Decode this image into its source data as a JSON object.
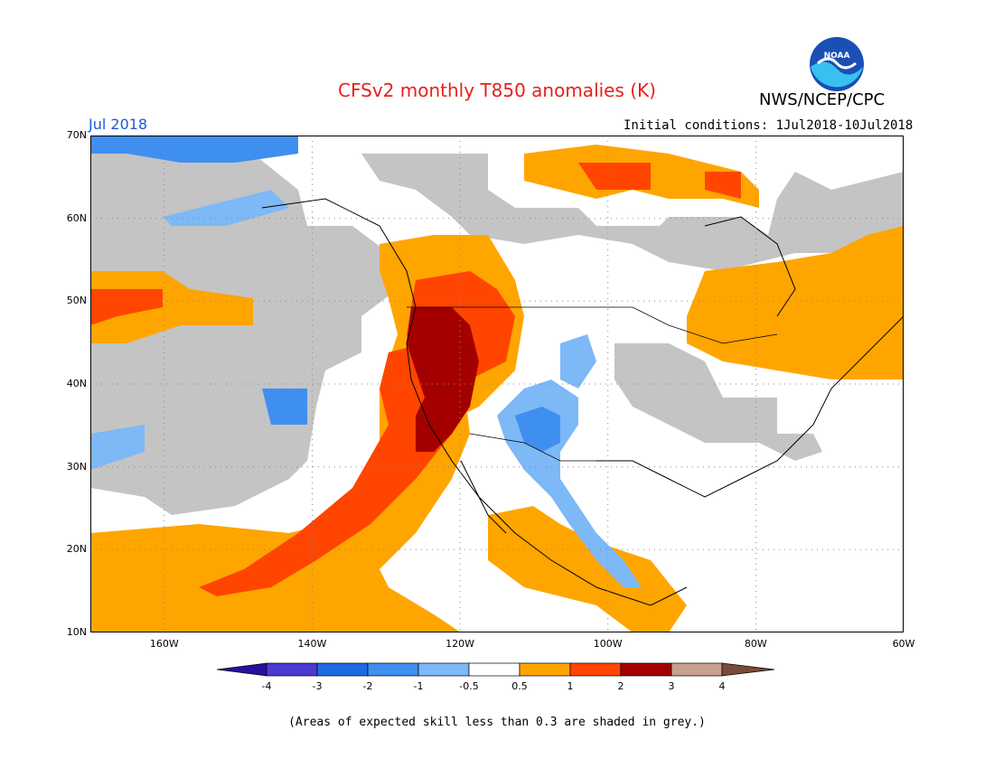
{
  "header": {
    "title": "CFSv2 monthly T850 anomalies (K)",
    "org": "NWS/NCEP/CPC",
    "month": "Jul 2018",
    "initial_conditions": "Initial conditions: 1Jul2018-10Jul2018",
    "logo_text": "NOAA"
  },
  "map": {
    "lat_labels": [
      "70N",
      "60N",
      "50N",
      "40N",
      "30N",
      "20N",
      "10N"
    ],
    "lon_labels": [
      "160W",
      "140W",
      "120W",
      "100W",
      "80W",
      "60W"
    ],
    "lat_range": [
      10,
      70
    ],
    "lon_range": [
      -170,
      -60
    ]
  },
  "legend": {
    "tick_labels": [
      "-4",
      "-3",
      "-2",
      "-1",
      "-0.5",
      "0.5",
      "1",
      "2",
      "3",
      "4"
    ],
    "colors": [
      "#2a0fa0",
      "#4a3ad0",
      "#1e6ae0",
      "#3f8ff0",
      "#7db8f7",
      "#ffffff",
      "#ffa500",
      "#ff4500",
      "#a50000",
      "#c8a08c",
      "#7a4a3a"
    ]
  },
  "footnote": "(Areas of expected skill less than 0.3 are shaded in grey.)"
}
